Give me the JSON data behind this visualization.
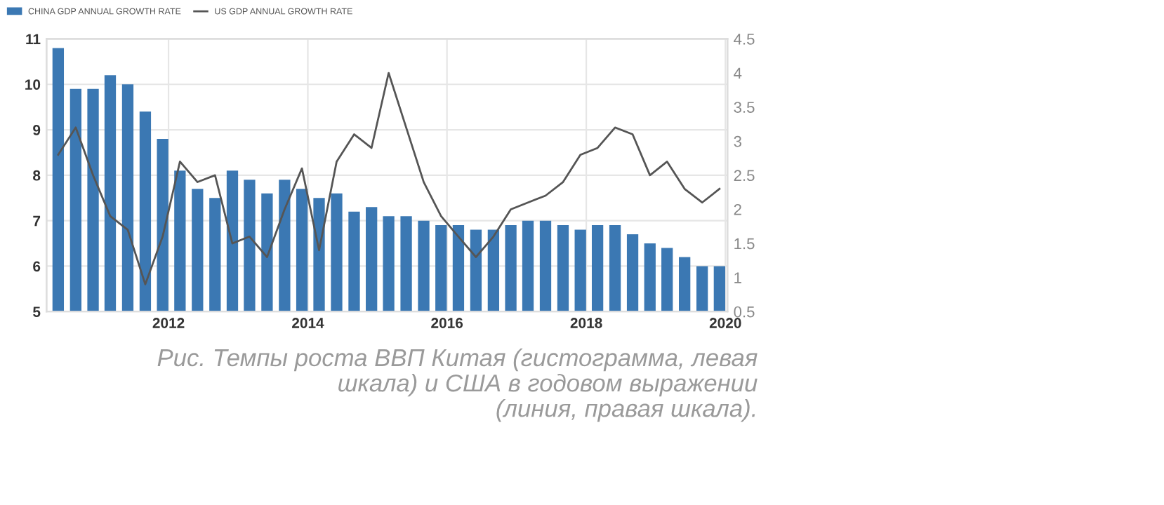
{
  "chart_data": {
    "type": "bar",
    "x": [
      "2010-06",
      "2010-09",
      "2010-12",
      "2011-03",
      "2011-06",
      "2011-09",
      "2011-12",
      "2012-03",
      "2012-06",
      "2012-09",
      "2012-12",
      "2013-03",
      "2013-06",
      "2013-09",
      "2013-12",
      "2014-03",
      "2014-06",
      "2014-09",
      "2014-12",
      "2015-03",
      "2015-06",
      "2015-09",
      "2015-12",
      "2016-03",
      "2016-06",
      "2016-09",
      "2016-12",
      "2017-03",
      "2017-06",
      "2017-09",
      "2017-12",
      "2018-03",
      "2018-06",
      "2018-09",
      "2018-12",
      "2019-03",
      "2019-06",
      "2019-09",
      "2019-12"
    ],
    "series": [
      {
        "name": "CHINA GDP ANNUAL GROWTH RATE",
        "color": "#3b78b3",
        "values": [
          10.8,
          9.9,
          9.9,
          10.2,
          10.0,
          9.4,
          8.8,
          8.1,
          7.7,
          7.5,
          8.1,
          7.9,
          7.6,
          7.9,
          7.7,
          7.5,
          7.6,
          7.2,
          7.3,
          7.1,
          7.1,
          7.0,
          6.9,
          6.9,
          6.8,
          6.8,
          6.9,
          7.0,
          7.0,
          6.9,
          6.8,
          6.9,
          6.9,
          6.7,
          6.5,
          6.4,
          6.2,
          6.0,
          6.0
        ]
      },
      {
        "name": "US GDP ANNUAL GROWTH RATE",
        "type": "line",
        "axis": "y2",
        "color": "#555555",
        "values": [
          2.8,
          3.2,
          2.5,
          1.9,
          1.7,
          0.9,
          1.6,
          2.7,
          2.4,
          2.5,
          1.5,
          1.6,
          1.3,
          2.0,
          2.6,
          1.4,
          2.7,
          3.1,
          2.9,
          4.0,
          3.2,
          2.4,
          1.9,
          1.6,
          1.3,
          1.6,
          2.0,
          2.1,
          2.2,
          2.4,
          2.8,
          2.9,
          3.2,
          3.1,
          2.5,
          2.7,
          2.3,
          2.1,
          2.3
        ]
      }
    ],
    "xlim": [
      "2010-04-01",
      "2020-01-12"
    ],
    "xticks": [
      "2012",
      "2014",
      "2016",
      "2018",
      "2020"
    ],
    "ylim": [
      5,
      11
    ],
    "yticks": [
      5,
      6,
      7,
      8,
      9,
      10,
      11
    ],
    "y2lim": [
      0.5,
      4.5
    ],
    "y2ticks": [
      0.5,
      1,
      1.5,
      2,
      2.5,
      3,
      3.5,
      4,
      4.5
    ],
    "grid": true,
    "legend": "top left",
    "marker": "none",
    "line_style": "solid",
    "annotations": [
      "Рис. Темпы роста ВВП Китая (гистограмма, левая\nшкала) и США в годовом выражении\n(линия, правая шкала)."
    ]
  }
}
